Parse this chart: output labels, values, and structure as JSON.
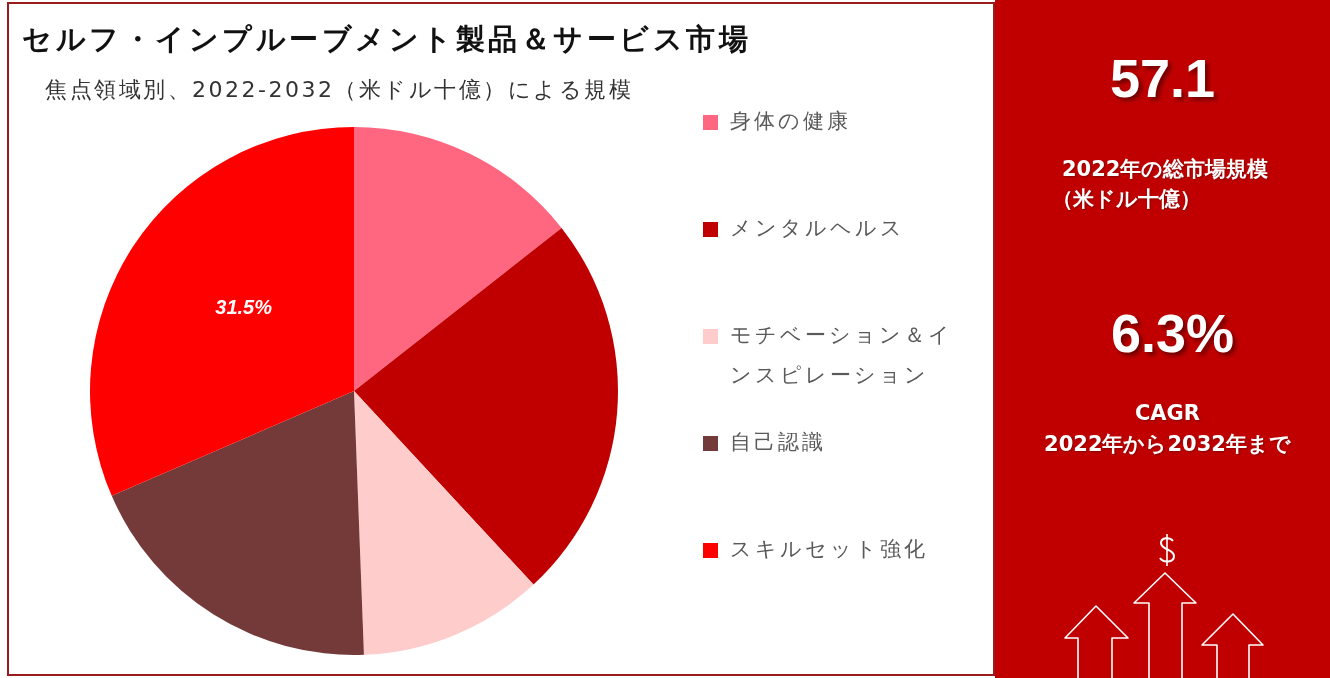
{
  "chart_data": [
    {
      "type": "pie",
      "title": "セルフ・インプルーブメント製品＆サービス市場",
      "subtitle": "焦点領域別、2022-2032（米ドル十億）による規模",
      "categories": [
        "身体の健康",
        "メンタルヘルス",
        "モチベーション＆インスピレーション",
        "自己認識",
        "スキルセット強化"
      ],
      "values": [
        14.4,
        23.7,
        11.3,
        19.1,
        31.5
      ],
      "colors": [
        "#ff6680",
        "#c00000",
        "#ffcccc",
        "#743a3a",
        "#ff0000"
      ],
      "value_labels": [
        null,
        null,
        null,
        null,
        "31.5%"
      ],
      "legend": "right"
    },
    {
      "type": "other",
      "annotations": [
        "57.1",
        "2022年の総市場規模",
        "（米ドル十億）",
        "6.3%",
        "CAGR",
        "2022年から2032年まで"
      ]
    }
  ]
}
